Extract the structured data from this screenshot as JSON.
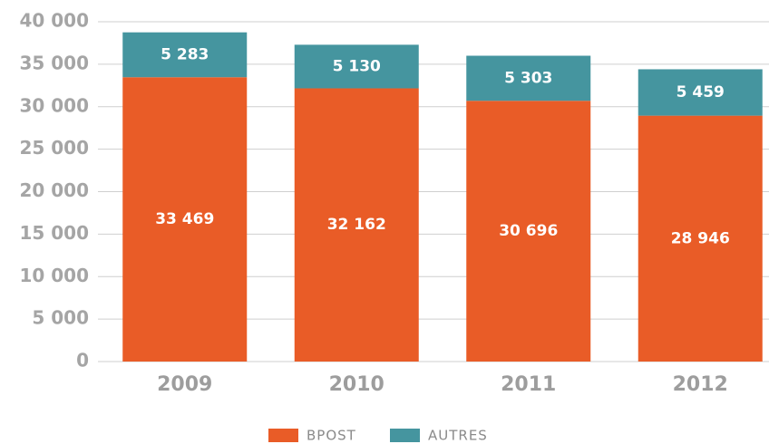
{
  "chart_data": {
    "type": "stacked_bar",
    "categories": [
      "2009",
      "2010",
      "2011",
      "2012"
    ],
    "series": [
      {
        "name": "BPOST",
        "color": "#e95c27",
        "values": [
          33469,
          32162,
          30696,
          28946
        ],
        "value_labels": [
          "33 469",
          "32 162",
          "30 696",
          "28 946"
        ]
      },
      {
        "name": "AUTRES",
        "color": "#45959f",
        "values": [
          5283,
          5130,
          5303,
          5459
        ],
        "value_labels": [
          "5 283",
          "5 130",
          "5 303",
          "5 459"
        ]
      }
    ],
    "ylim": [
      0,
      40000
    ],
    "yticks": [
      0,
      {
        "value": 5000,
        "label": "5 000"
      },
      {
        "value": 10000,
        "label": "10 000"
      },
      {
        "value": 15000,
        "label": "15 000"
      },
      {
        "value": 20000,
        "label": "20 000"
      },
      {
        "value": 25000,
        "label": "25 000"
      },
      {
        "value": 30000,
        "label": "30 000"
      },
      {
        "value": 35000,
        "label": "35 000"
      },
      {
        "value": 40000,
        "label": "40 000"
      }
    ],
    "grid": true
  }
}
